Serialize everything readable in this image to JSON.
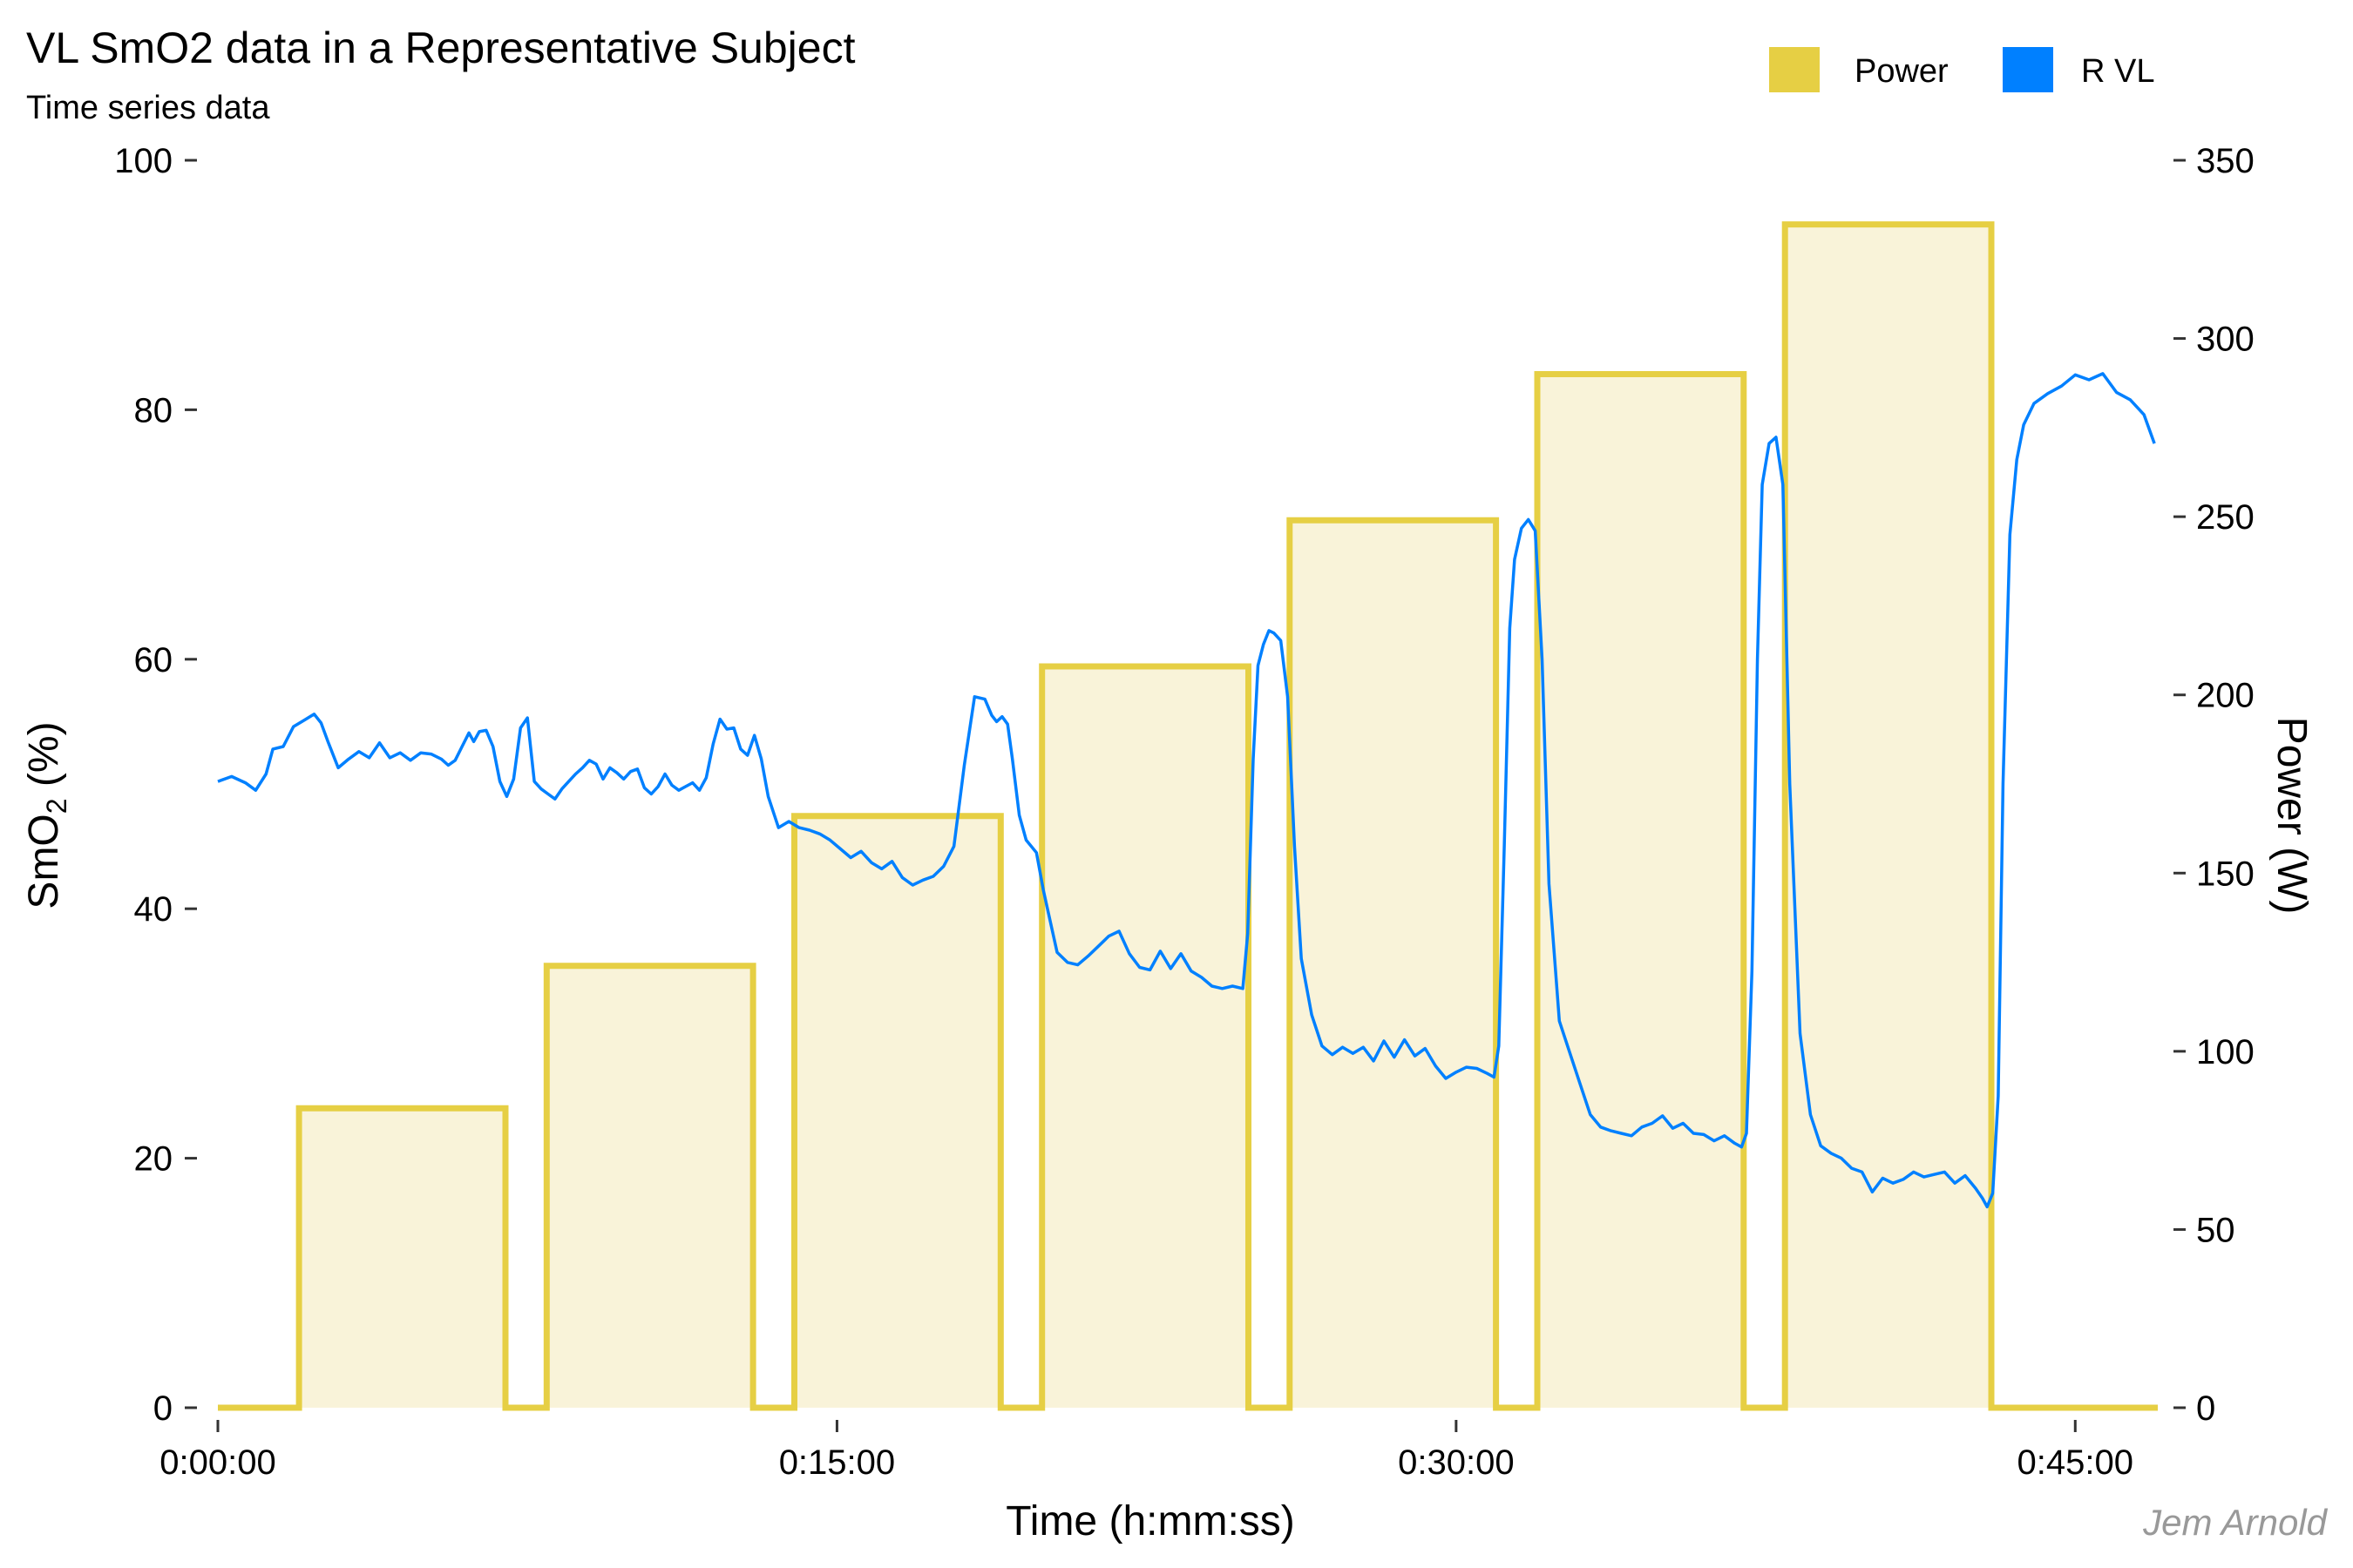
{
  "chart_data": {
    "type": "line",
    "title": "VL SmO2 data in a Representative Subject",
    "subtitle": "Time series data",
    "caption": "Jem Arnold",
    "xlabel": "Time (h:mm:ss)",
    "ylabel": "SmO2 (%)",
    "ylabel_base": "SmO",
    "ylabel_sub": "2",
    "ylabel_suffix": " (%)",
    "y2label": "Power (W)",
    "x_unit": "seconds",
    "xlim": [
      0,
      2820
    ],
    "ylim": [
      0,
      100
    ],
    "y2lim": [
      0,
      350
    ],
    "x_ticks": [
      {
        "value": 0,
        "label": "0:00:00"
      },
      {
        "value": 900,
        "label": "0:15:00"
      },
      {
        "value": 1800,
        "label": "0:30:00"
      },
      {
        "value": 2700,
        "label": "0:45:00"
      }
    ],
    "y_ticks": [
      0,
      20,
      40,
      60,
      80,
      100
    ],
    "y2_ticks": [
      0,
      50,
      100,
      150,
      200,
      250,
      300,
      350
    ],
    "grid": false,
    "legend_position": "top-right",
    "legend": [
      {
        "name": "Power",
        "color": "#E6CF44"
      },
      {
        "name": "R VL",
        "color": "#0080FF"
      }
    ],
    "colors": {
      "power_line": "#E6CF44",
      "power_fill": "#F9F3D9",
      "smo2_line": "#0080FF"
    },
    "series": [
      {
        "name": "Power",
        "axis": "right",
        "type": "step",
        "x": [
          0,
          118,
          118,
          418,
          418,
          478,
          478,
          778,
          778,
          838,
          838,
          1138,
          1138,
          1198,
          1198,
          1498,
          1498,
          1558,
          1558,
          1858,
          1858,
          1918,
          1918,
          2218,
          2218,
          2278,
          2278,
          2578,
          2578,
          2820
        ],
        "values": [
          0,
          0,
          84,
          84,
          0,
          0,
          124,
          124,
          0,
          0,
          166,
          166,
          0,
          0,
          208,
          208,
          0,
          0,
          249,
          249,
          0,
          0,
          290,
          290,
          0,
          0,
          332,
          332,
          0,
          0
        ]
      },
      {
        "name": "R VL",
        "axis": "left",
        "type": "line",
        "x": [
          0,
          20,
          40,
          55,
          70,
          80,
          95,
          110,
          125,
          140,
          150,
          160,
          175,
          190,
          205,
          220,
          235,
          250,
          265,
          280,
          295,
          310,
          325,
          335,
          345,
          355,
          365,
          372,
          380,
          390,
          400,
          410,
          420,
          430,
          440,
          450,
          460,
          470,
          480,
          490,
          500,
          510,
          520,
          530,
          540,
          550,
          560,
          570,
          580,
          590,
          600,
          610,
          620,
          630,
          640,
          650,
          660,
          670,
          680,
          690,
          700,
          710,
          720,
          730,
          740,
          750,
          760,
          770,
          780,
          790,
          800,
          815,
          830,
          845,
          860,
          875,
          890,
          905,
          920,
          935,
          950,
          965,
          980,
          995,
          1010,
          1025,
          1040,
          1055,
          1070,
          1085,
          1100,
          1115,
          1125,
          1132,
          1140,
          1148,
          1155,
          1165,
          1175,
          1190,
          1200,
          1210,
          1220,
          1235,
          1250,
          1265,
          1280,
          1295,
          1310,
          1325,
          1340,
          1355,
          1370,
          1385,
          1400,
          1415,
          1430,
          1445,
          1460,
          1475,
          1490,
          1497,
          1505,
          1512,
          1520,
          1528,
          1535,
          1545,
          1555,
          1565,
          1575,
          1590,
          1605,
          1620,
          1635,
          1650,
          1665,
          1680,
          1695,
          1710,
          1725,
          1740,
          1755,
          1770,
          1785,
          1800,
          1815,
          1830,
          1845,
          1855,
          1862,
          1870,
          1878,
          1885,
          1895,
          1905,
          1915,
          1925,
          1935,
          1950,
          1965,
          1980,
          1995,
          2010,
          2025,
          2040,
          2055,
          2070,
          2085,
          2100,
          2115,
          2130,
          2145,
          2160,
          2175,
          2190,
          2205,
          2215,
          2222,
          2230,
          2238,
          2245,
          2255,
          2265,
          2275,
          2285,
          2300,
          2315,
          2330,
          2345,
          2360,
          2375,
          2390,
          2405,
          2420,
          2435,
          2450,
          2465,
          2480,
          2495,
          2510,
          2525,
          2540,
          2555,
          2565,
          2572,
          2580,
          2588,
          2595,
          2605,
          2615,
          2625,
          2640,
          2660,
          2680,
          2700,
          2720,
          2740,
          2760,
          2780,
          2800,
          2815
        ],
        "values": [
          50.2,
          50.6,
          50.1,
          49.5,
          50.8,
          52.8,
          53.0,
          54.6,
          55.1,
          55.6,
          54.9,
          53.4,
          51.3,
          52.0,
          52.6,
          52.1,
          53.3,
          52.1,
          52.5,
          51.9,
          52.5,
          52.4,
          52.0,
          51.5,
          51.9,
          53.0,
          54.1,
          53.4,
          54.2,
          54.3,
          53.0,
          50.2,
          49.0,
          50.4,
          54.5,
          55.3,
          50.2,
          49.6,
          49.2,
          48.8,
          49.6,
          50.2,
          50.8,
          51.3,
          51.9,
          51.6,
          50.4,
          51.3,
          50.9,
          50.4,
          51.0,
          51.2,
          49.7,
          49.2,
          49.8,
          50.8,
          49.9,
          49.5,
          49.8,
          50.1,
          49.5,
          50.5,
          53.2,
          55.2,
          54.4,
          54.5,
          52.8,
          52.3,
          53.9,
          52.0,
          49.0,
          46.5,
          47.0,
          46.5,
          46.3,
          46.0,
          45.5,
          44.8,
          44.1,
          44.6,
          43.7,
          43.2,
          43.8,
          42.5,
          41.9,
          42.3,
          42.6,
          43.4,
          45.0,
          51.5,
          57.0,
          56.8,
          55.5,
          55.0,
          55.4,
          54.8,
          52.0,
          47.5,
          45.5,
          44.5,
          41.5,
          39.0,
          36.5,
          35.7,
          35.5,
          36.2,
          37.0,
          37.8,
          38.2,
          36.4,
          35.3,
          35.1,
          36.6,
          35.2,
          36.4,
          35.0,
          34.5,
          33.8,
          33.6,
          33.8,
          33.6,
          38.0,
          52.0,
          59.5,
          61.2,
          62.3,
          62.1,
          61.5,
          57.0,
          45.0,
          36.0,
          31.5,
          29.0,
          28.3,
          28.9,
          28.4,
          28.9,
          27.8,
          29.4,
          28.1,
          29.5,
          28.2,
          28.8,
          27.4,
          26.4,
          26.9,
          27.3,
          27.2,
          26.8,
          26.5,
          29.0,
          45.0,
          62.5,
          68.0,
          70.5,
          71.2,
          70.3,
          60.0,
          42.0,
          31.0,
          28.5,
          26.0,
          23.5,
          22.5,
          22.2,
          22.0,
          21.8,
          22.5,
          22.8,
          23.4,
          22.4,
          22.8,
          22.0,
          21.9,
          21.4,
          21.8,
          21.2,
          20.9,
          22.0,
          35.0,
          60.0,
          74.0,
          77.3,
          77.8,
          74.0,
          50.0,
          30.0,
          23.5,
          21.0,
          20.4,
          20.0,
          19.2,
          18.9,
          17.3,
          18.4,
          18.0,
          18.3,
          18.9,
          18.5,
          18.7,
          18.9,
          18.0,
          18.6,
          17.6,
          16.8,
          16.1,
          17.2,
          25.0,
          50.0,
          70.0,
          76.0,
          78.8,
          80.5,
          81.3,
          81.9,
          82.8,
          82.4,
          82.9,
          81.4,
          80.8,
          79.6,
          77.3
        ]
      }
    ]
  }
}
